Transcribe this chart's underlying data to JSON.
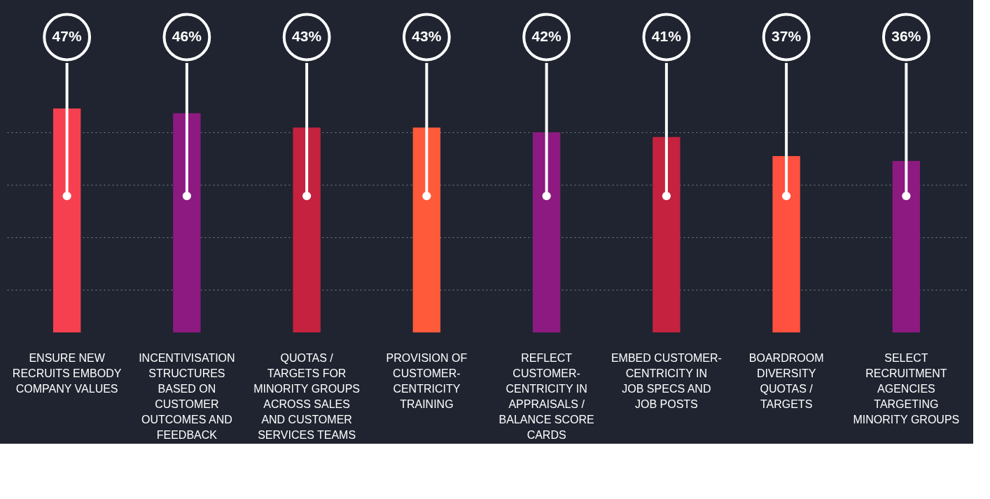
{
  "chart_data": {
    "type": "bar",
    "categories": [
      "ENSURE NEW RECRUITS EMBODY COMPANY VALUES",
      "INCENTIVISATION STRUCTURES BASED ON CUSTOMER OUTCOMES AND FEEDBACK",
      "QUOTAS / TARGETS FOR MINORITY GROUPS ACROSS SALES AND CUSTOMER SERVICES TEAMS",
      "PROVISION OF CUSTOMER-CENTRICITY TRAINING",
      "REFLECT CUSTOMER-CENTRICITY IN APPRAISALS / BALANCE SCORE CARDS",
      "EMBED CUSTOMER-CENTRICITY IN JOB SPECS AND JOB POSTS",
      "BOARDROOM DIVERSITY QUOTAS / TARGETS",
      "SELECT RECRUITMENT AGENCIES TARGETING MINORITY GROUPS"
    ],
    "values": [
      47,
      46,
      43,
      43,
      42,
      41,
      37,
      36
    ],
    "colors": [
      "#f7404f",
      "#8c1a80",
      "#c4223f",
      "#ff5a3a",
      "#8c1a80",
      "#c4223f",
      "#ff5040",
      "#8c1a80"
    ],
    "value_labels": [
      "47%",
      "46%",
      "43%",
      "43%",
      "42%",
      "41%",
      "37%",
      "36%"
    ],
    "yticks": [
      {
        "value": 9,
        "label": null
      },
      {
        "value": 20,
        "label": null
      },
      {
        "value": 31,
        "label": null
      },
      {
        "value": 42,
        "label": null
      }
    ],
    "grid": "y",
    "tick_labels": "x"
  }
}
